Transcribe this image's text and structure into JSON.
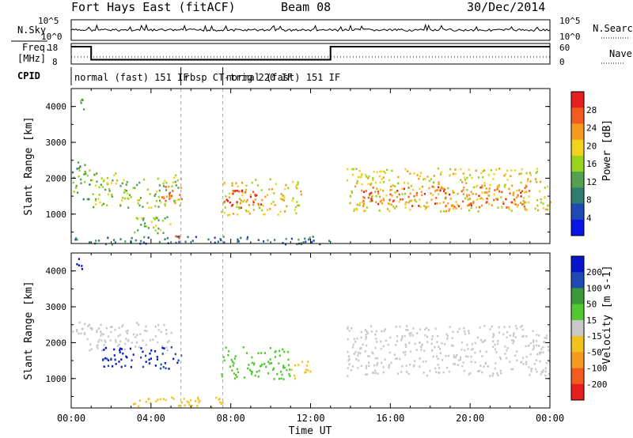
{
  "header": {
    "title": "Fort Hays East (fitACF)",
    "beam": "Beam 08",
    "date": "30/Dec/2014"
  },
  "strips": {
    "nsky_label": "N.Sky",
    "nsearch_label": "N.Search",
    "freq_label": "Freq.",
    "freq_unit": "[MHz]",
    "nave_label": "Nave",
    "cpid_label": "CPID",
    "noise_ticks": [
      "10^5",
      "10^0"
    ],
    "freq_ticks": [
      "18",
      "8"
    ],
    "nave_ticks": [
      "60",
      "0"
    ],
    "cpid_segments": [
      {
        "label": "normal (fast) 151 IF",
        "start": 0.0,
        "end": 5.5
      },
      {
        "label": "rbsp CT-trig 220 IF",
        "start": 5.5,
        "end": 7.6
      },
      {
        "label": "normal (fast) 151 IF",
        "start": 7.6,
        "end": 24.0
      }
    ],
    "freq_mhz_series": [
      {
        "t": 0.0,
        "v": 18
      },
      {
        "t": 1.0,
        "v": 18
      },
      {
        "t": 1.0,
        "v": 10.5
      },
      {
        "t": 13.0,
        "v": 10.5
      },
      {
        "t": 13.0,
        "v": 18
      },
      {
        "t": 24.0,
        "v": 18
      }
    ]
  },
  "chart_data": [
    {
      "type": "heatmap",
      "parameter": "Power",
      "ylabel": "Slant Range [km]",
      "y_ticks": [
        "4000",
        "3000",
        "2000",
        "1000"
      ],
      "ylim": [
        180,
        4500
      ],
      "xlim": [
        0,
        24
      ],
      "colorbar": {
        "label": "Power [dB]",
        "ticks": [
          "28",
          "24",
          "20",
          "16",
          "12",
          "8",
          "4"
        ],
        "range": [
          0,
          30
        ]
      },
      "echo_regions": [
        {
          "t0": 0.0,
          "t1": 1.0,
          "r0": 1400,
          "r1": 2500,
          "v": 12
        },
        {
          "t0": 0.2,
          "t1": 0.6,
          "r0": 3900,
          "r1": 4400,
          "v": 10
        },
        {
          "t0": 1.0,
          "t1": 5.5,
          "r0": 1200,
          "r1": 2200,
          "v": 14
        },
        {
          "t0": 4.5,
          "t1": 5.6,
          "r0": 1200,
          "r1": 1800,
          "v": 24
        },
        {
          "t0": 3.0,
          "t1": 5.0,
          "r0": 400,
          "r1": 1000,
          "v": 14
        },
        {
          "t0": 5.0,
          "t1": 5.5,
          "r0": 200,
          "r1": 450,
          "v": 26
        },
        {
          "t0": 7.5,
          "t1": 11.5,
          "r0": 1000,
          "r1": 2000,
          "v": 18
        },
        {
          "t0": 7.6,
          "t1": 9.5,
          "r0": 1200,
          "r1": 1700,
          "v": 28
        },
        {
          "t0": 13.8,
          "t1": 24.0,
          "r0": 1100,
          "r1": 2300,
          "v": 18
        },
        {
          "t0": 14.5,
          "t1": 23.0,
          "r0": 1200,
          "r1": 1800,
          "v": 24
        },
        {
          "t0": 0.0,
          "t1": 13.0,
          "r0": 180,
          "r1": 400,
          "v": 8
        }
      ]
    },
    {
      "type": "heatmap",
      "parameter": "Velocity",
      "ylabel": "Slant Range [km]",
      "xlabel": "Time UT",
      "x_ticks": [
        "00:00",
        "04:00",
        "08:00",
        "12:00",
        "16:00",
        "20:00",
        "00:00"
      ],
      "y_ticks": [
        "4000",
        "3000",
        "2000",
        "1000"
      ],
      "ylim": [
        180,
        4500
      ],
      "xlim": [
        0,
        24
      ],
      "colorbar": {
        "label": "Velocity [m s-1]",
        "ticks": [
          "200",
          "100",
          "50",
          "15",
          "-15",
          "-50",
          "-100",
          "-200"
        ],
        "range": [
          -250,
          250
        ]
      },
      "echo_regions": [
        {
          "t0": 0.0,
          "t1": 5.0,
          "r0": 1800,
          "r1": 2600,
          "v": 0
        },
        {
          "t0": 1.5,
          "t1": 5.6,
          "r0": 1300,
          "r1": 1900,
          "v": 200
        },
        {
          "t0": 7.5,
          "t1": 11.0,
          "r0": 1000,
          "r1": 1900,
          "v": 50
        },
        {
          "t0": 11.0,
          "t1": 12.0,
          "r0": 1000,
          "r1": 1500,
          "v": -50
        },
        {
          "t0": 13.8,
          "t1": 24.0,
          "r0": 1100,
          "r1": 2500,
          "v": 0
        },
        {
          "t0": 0.2,
          "t1": 0.6,
          "r0": 3900,
          "r1": 4400,
          "v": 200
        },
        {
          "t0": 3.0,
          "t1": 8.0,
          "r0": 200,
          "r1": 500,
          "v": -50
        }
      ]
    }
  ],
  "colors": {
    "power_scale": [
      "#0a14e6",
      "#1e4ab4",
      "#2e7d6e",
      "#52a050",
      "#9ad21e",
      "#f2d21e",
      "#f59a1e",
      "#f25a1e",
      "#e61e1e"
    ],
    "velocity_scale": [
      "#e61e1e",
      "#f25a1e",
      "#f59a1e",
      "#f2c21e",
      "#c8c8c8",
      "#52c832",
      "#3a9a3a",
      "#1e4ab4",
      "#0a14c8"
    ]
  }
}
